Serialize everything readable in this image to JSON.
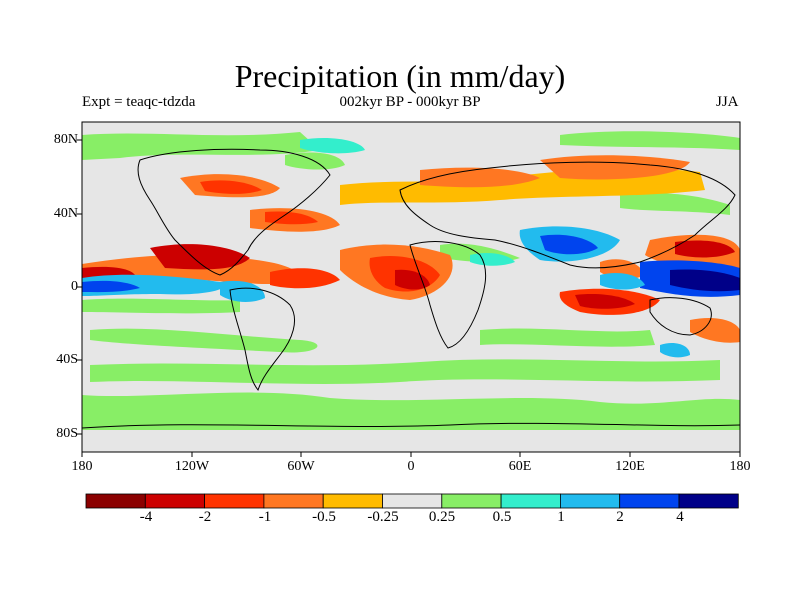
{
  "title": "Precipitation (in mm/day)",
  "subtitle_left": "Expt = teaqc-tdzda",
  "subtitle_center": "002kyr BP - 000kyr BP",
  "subtitle_right": "JJA",
  "y_ticks": [
    "80N",
    "40N",
    "0",
    "40S",
    "80S"
  ],
  "x_ticks": [
    "180",
    "120W",
    "60W",
    "0",
    "60E",
    "120E",
    "180"
  ],
  "colorbar": {
    "labels": [
      "-4",
      "-2",
      "-1",
      "-0.5",
      "-0.25",
      "0.25",
      "0.5",
      "1",
      "2",
      "4"
    ],
    "colors": [
      "#8b0000",
      "#cc0000",
      "#ff3300",
      "#ff7722",
      "#ffbb00",
      "#e6e6e6",
      "#88ee66",
      "#33eecc",
      "#22bbee",
      "#0044ee",
      "#000088"
    ]
  }
}
